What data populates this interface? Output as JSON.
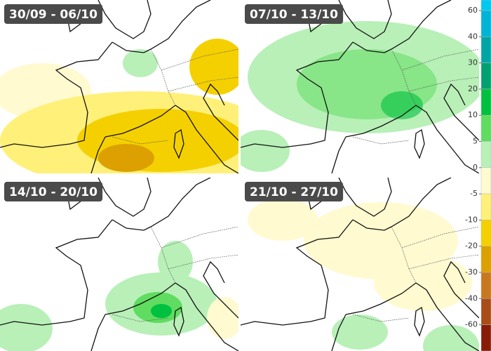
{
  "panels": [
    {
      "title": "30/09 - 06/10"
    },
    {
      "title": "07/10 - 13/10"
    },
    {
      "title": "14/10 - 20/10"
    },
    {
      "title": "21/10 - 27/10"
    }
  ],
  "legend": {
    "labels": [
      60,
      40,
      30,
      20,
      10,
      5,
      0,
      -5,
      -10,
      -20,
      -30,
      -40,
      -60
    ],
    "colors": [
      "#00c8f0",
      "#00b4d8",
      "#00a6a6",
      "#00a070",
      "#00c040",
      "#60dc60",
      "#b8f0b8",
      "#fffad0",
      "#fff07a",
      "#f5d000",
      "#dca000",
      "#c87820",
      "#a84c18",
      "#881c08"
    ]
  }
}
